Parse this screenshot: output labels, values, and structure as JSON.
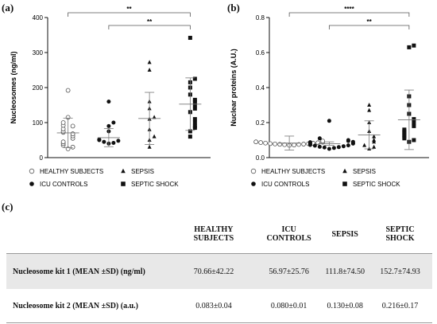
{
  "panels": {
    "a": "(a)",
    "b": "(b)",
    "c": "(c)"
  },
  "chart_data": [
    {
      "type": "scatter",
      "ylabel": "Nucleosomes (ng/ml)",
      "ylim": [
        0,
        400
      ],
      "yticks": [
        "0",
        "100",
        "200",
        "300",
        "400"
      ],
      "categories": [
        "HEALTHY SUBJECTS",
        "ICU CONTROLS",
        "SEPSIS",
        "SEPTIC SHOCK"
      ],
      "significance": [
        {
          "from": 0,
          "to": 3,
          "label": "**"
        },
        {
          "from": 1,
          "to": 3,
          "label": "**"
        }
      ],
      "series": [
        {
          "name": "HEALTHY SUBJECTS",
          "marker": "open-circle",
          "values": [
            192,
            115,
            100,
            92,
            90,
            82,
            75,
            72,
            68,
            62,
            55,
            45,
            40,
            35,
            30,
            25
          ],
          "mean": 70.66,
          "sd": 42.22
        },
        {
          "name": "ICU CONTROLS",
          "marker": "filled-circle",
          "values": [
            160,
            100,
            90,
            75,
            52,
            50,
            48,
            45,
            42,
            40
          ],
          "mean": 56.97,
          "sd": 25.76
        },
        {
          "name": "SEPSIS",
          "marker": "triangle",
          "values": [
            272,
            250,
            160,
            140,
            115,
            110,
            80,
            60,
            50,
            30
          ],
          "mean": 111.8,
          "sd": 74.5
        },
        {
          "name": "SEPTIC SHOCK",
          "marker": "square",
          "values": [
            342,
            225,
            215,
            200,
            180,
            165,
            160,
            150,
            140,
            130,
            110,
            100,
            90,
            85,
            75,
            60
          ],
          "mean": 152.7,
          "sd": 74.93
        }
      ],
      "legend": "bottom"
    },
    {
      "type": "scatter",
      "ylabel": "Nuclear proteins (A.U.)",
      "ylim": [
        0,
        0.8
      ],
      "yticks": [
        "0.0",
        "0.2",
        "0.4",
        "0.6",
        "0.8"
      ],
      "categories": [
        "HEALTHY SUBJECTS",
        "ICU CONTROLS",
        "SEPSIS",
        "SEPTIC SHOCK"
      ],
      "significance": [
        {
          "from": 0,
          "to": 3,
          "label": "****"
        },
        {
          "from": 1,
          "to": 3,
          "label": "**"
        }
      ],
      "series": [
        {
          "name": "HEALTHY SUBJECTS",
          "marker": "open-circle",
          "values": [
            0.095,
            0.09,
            0.088,
            0.086,
            0.085,
            0.083,
            0.082,
            0.08,
            0.079,
            0.078,
            0.077,
            0.076,
            0.075,
            0.074,
            0.072,
            0.07
          ],
          "mean": 0.083,
          "sd": 0.04
        },
        {
          "name": "ICU CONTROLS",
          "marker": "filled-circle",
          "values": [
            0.21,
            0.11,
            0.1,
            0.095,
            0.09,
            0.088,
            0.085,
            0.082,
            0.08,
            0.078,
            0.075,
            0.072,
            0.07,
            0.068,
            0.065,
            0.062,
            0.06,
            0.058,
            0.055,
            0.05
          ],
          "mean": 0.08,
          "sd": 0.01
        },
        {
          "name": "SEPSIS",
          "marker": "triangle",
          "values": [
            0.3,
            0.27,
            0.2,
            0.15,
            0.12,
            0.1,
            0.09,
            0.07,
            0.06,
            0.05
          ],
          "mean": 0.13,
          "sd": 0.08
        },
        {
          "name": "SEPTIC SHOCK",
          "marker": "square",
          "values": [
            0.64,
            0.63,
            0.35,
            0.3,
            0.25,
            0.22,
            0.2,
            0.18,
            0.16,
            0.15,
            0.14,
            0.13,
            0.12,
            0.11,
            0.1,
            0.09
          ],
          "mean": 0.216,
          "sd": 0.17
        }
      ],
      "legend": "bottom"
    }
  ],
  "table": {
    "headers": [
      "HEALTHY SUBJECTS",
      "ICU CONTROLS",
      "SEPSIS",
      "SEPTIC SHOCK"
    ],
    "rows": [
      {
        "label": "Nucleosome kit 1 (MEAN ±SD) (ng/ml)",
        "values": [
          "70.66±42.22",
          "56.97±25.76",
          "111.8±74.50",
          "152.7±74.93"
        ]
      },
      {
        "label": "Nucleosome kit 2 (MEAN ±SD) (a.u.)",
        "values": [
          "0.083±0.04",
          "0.080±0.01",
          "0.130±0.08",
          "0.216±0.17"
        ]
      }
    ]
  }
}
